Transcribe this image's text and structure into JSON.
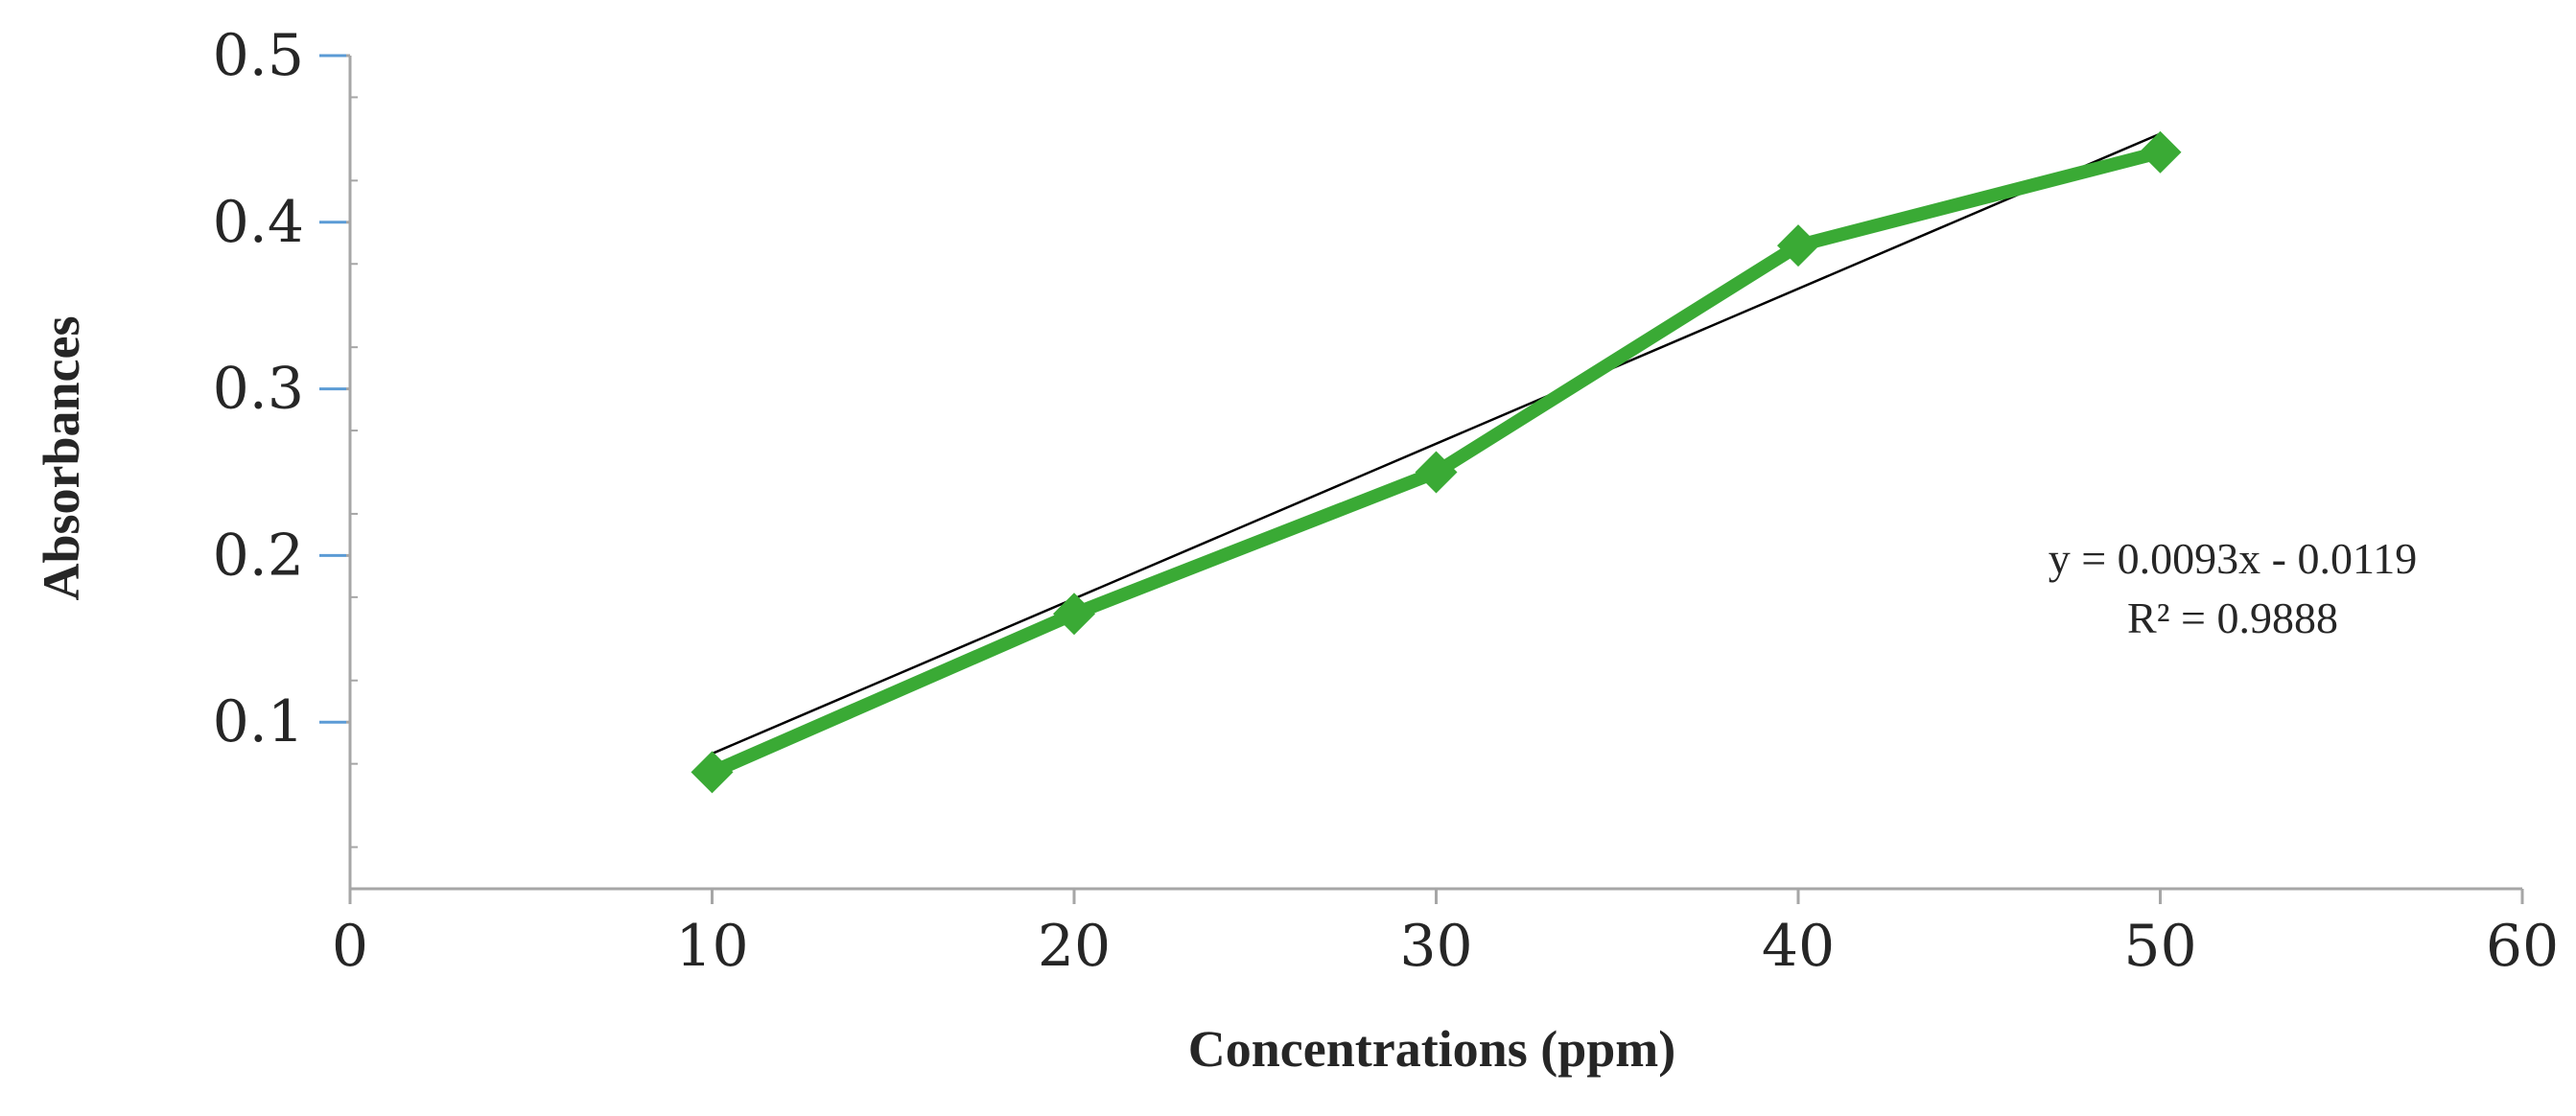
{
  "chart_data": {
    "type": "line",
    "title": "",
    "xlabel": "Concentrations (ppm)",
    "ylabel": "Absorbances",
    "xlim": [
      0,
      60
    ],
    "ylim": [
      0,
      0.5
    ],
    "xticks": [
      "0",
      "10",
      "20",
      "30",
      "40",
      "50",
      "60"
    ],
    "yticks": [
      "0.1",
      "0.2",
      "0.3",
      "0.4",
      "0.5"
    ],
    "grid": false,
    "legend": "none",
    "series": [
      {
        "x": [
          10,
          20,
          30,
          40,
          50
        ],
        "y": [
          0.07,
          0.165,
          0.25,
          0.386,
          0.442
        ],
        "color": "#3aaa35",
        "marker": "diamond"
      }
    ],
    "trendline": {
      "type": "linear",
      "slope": 0.0093,
      "intercept": -0.0119,
      "x_range": [
        10,
        50
      ],
      "color": "#000000",
      "equation_label": "y = 0.0093x  - 0.0119",
      "r2_label": "R² = 0.9888"
    },
    "tick_color": "#5b9bd5",
    "axis_color": "#a6a6a6"
  }
}
